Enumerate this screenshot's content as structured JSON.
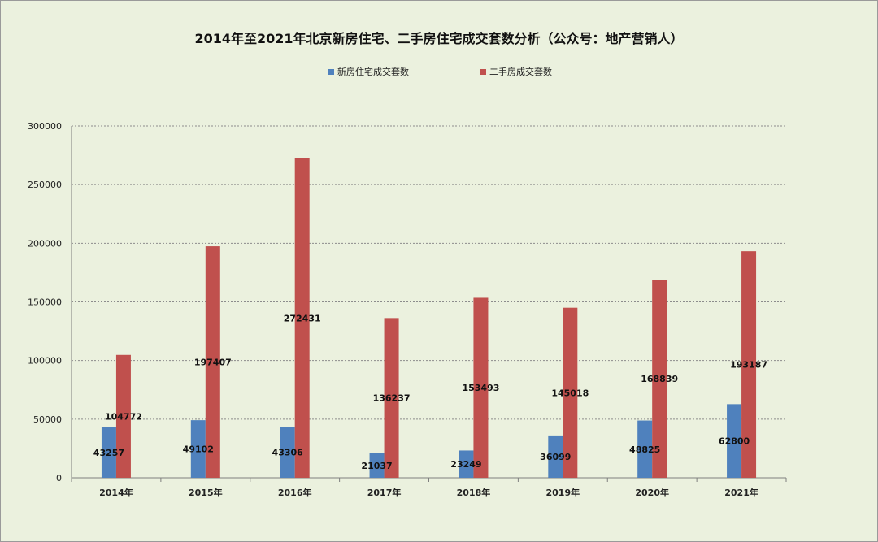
{
  "colors": {
    "background": "#ebf1de",
    "new_series": "#4f81bd",
    "second_series": "#c0504d",
    "grid": "#8c8c8c",
    "axis": "#7f7f7f"
  },
  "chart_data": {
    "type": "bar",
    "title": "2014年至2021年北京新房住宅、二手房住宅成交套数分析（公众号：地产营销人）",
    "xlabel": "",
    "ylabel": "",
    "ylim": [
      0,
      300000
    ],
    "yticks": [
      0,
      50000,
      100000,
      150000,
      200000,
      250000,
      300000
    ],
    "grid": true,
    "legend_position": "top",
    "categories": [
      "2014年",
      "2015年",
      "2016年",
      "2017年",
      "2018年",
      "2019年",
      "2020年",
      "2021年"
    ],
    "series": [
      {
        "name": "新房住宅成交套数",
        "color": "#4f81bd",
        "values": [
          43257,
          49102,
          43306,
          21037,
          23249,
          36099,
          48825,
          62800
        ]
      },
      {
        "name": "二手房成交套数",
        "color": "#c0504d",
        "values": [
          104772,
          197407,
          272431,
          136237,
          153493,
          145018,
          168839,
          193187
        ]
      }
    ]
  }
}
